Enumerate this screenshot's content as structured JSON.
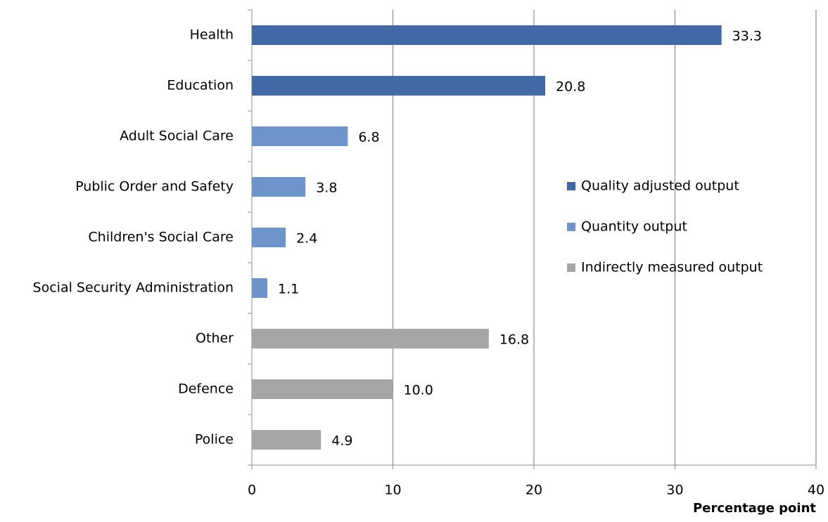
{
  "chart_data": {
    "type": "bar",
    "orientation": "horizontal",
    "categories": [
      "Health",
      "Education",
      "Adult Social Care",
      "Public Order and Safety",
      "Children's Social Care",
      "Social Security Administration",
      "Other",
      "Defence",
      "Police"
    ],
    "series": [
      {
        "name": "Quality adjusted output",
        "color": "#4169a5",
        "values": [
          33.3,
          20.8,
          null,
          null,
          null,
          null,
          null,
          null,
          null
        ]
      },
      {
        "name": "Quantity output",
        "color": "#6d95cb",
        "values": [
          null,
          null,
          6.8,
          3.8,
          2.4,
          1.1,
          null,
          null,
          null
        ]
      },
      {
        "name": "Indirectly measured output",
        "color": "#a6a6a6",
        "values": [
          null,
          null,
          null,
          null,
          null,
          null,
          16.8,
          10,
          4.9
        ],
        "value_labels": [
          null,
          null,
          null,
          null,
          null,
          null,
          "16.8",
          "10.0",
          "4.9"
        ]
      }
    ],
    "xlim": [
      0,
      40
    ],
    "xticks": [
      0,
      10,
      20,
      30,
      40
    ],
    "grid": true,
    "xlabel": "Percentage point",
    "legend": "right"
  }
}
